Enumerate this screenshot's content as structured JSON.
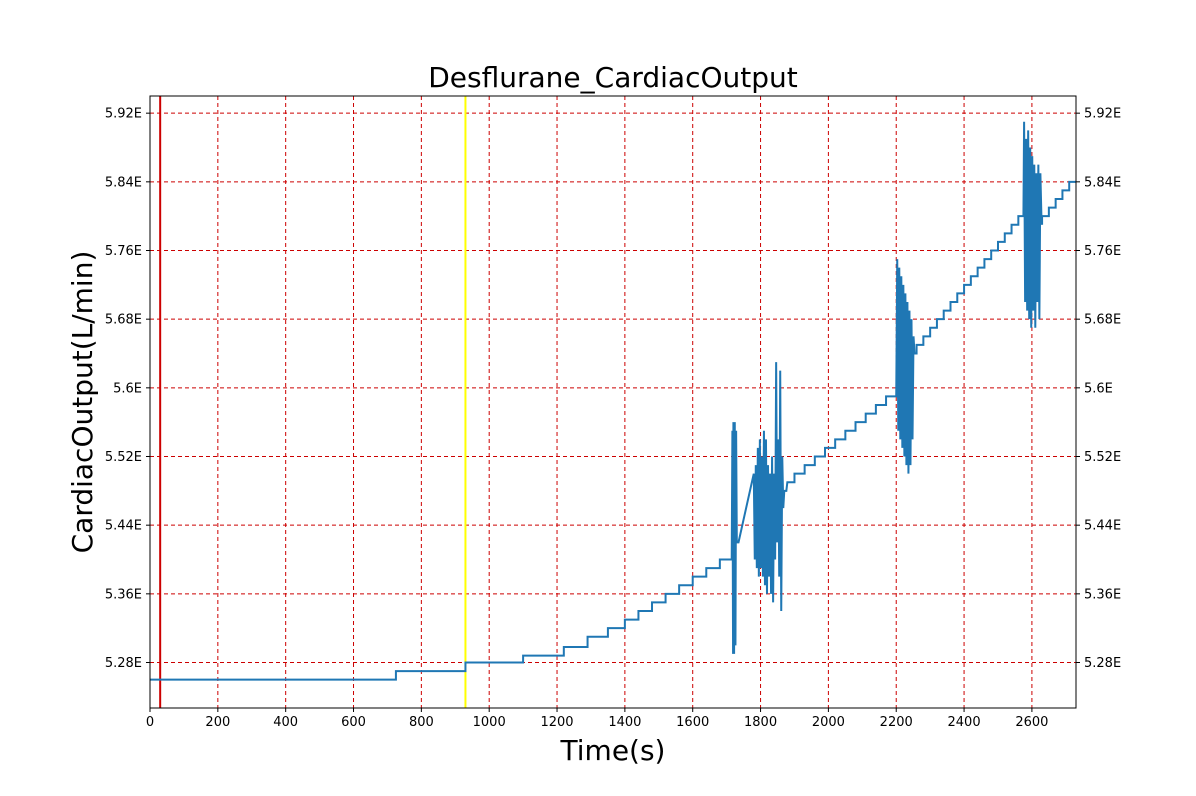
{
  "chart_data": {
    "type": "line",
    "title": "Desflurane_CardiacOutput",
    "xlabel": "Time(s)",
    "ylabel": "CardiacOutput(L/min)",
    "xlim": [
      0,
      2730
    ],
    "ylim": [
      5.227,
      5.94
    ],
    "x_ticks": [
      0,
      200,
      400,
      600,
      800,
      1000,
      1200,
      1400,
      1600,
      1800,
      2000,
      2200,
      2400,
      2600
    ],
    "x_tick_labels": [
      "0",
      "200",
      "400",
      "600",
      "800",
      "1000",
      "1200",
      "1400",
      "1600",
      "1800",
      "2000",
      "2200",
      "2400",
      "2600"
    ],
    "y_ticks": [
      5.28,
      5.36,
      5.44,
      5.52,
      5.6,
      5.68,
      5.76,
      5.84,
      5.92
    ],
    "y_tick_labels": [
      "5.28E",
      "5.36E",
      "5.44E",
      "5.52E",
      "5.6E",
      "5.68E",
      "5.76E",
      "5.84E",
      "5.92E"
    ],
    "grid": true,
    "grid_color": "#cc0000",
    "series_color": "#1f77b4",
    "vertical_lines": [
      {
        "x": 30,
        "color": "#cc0000"
      },
      {
        "x": 930,
        "color": "#ffff00"
      }
    ],
    "series": [
      {
        "x": [
          0,
          725,
          725,
          930,
          930,
          1100,
          1100,
          1220,
          1220,
          1290,
          1290,
          1350,
          1350,
          1400,
          1400,
          1440,
          1440,
          1480,
          1480,
          1520,
          1520,
          1560,
          1560,
          1600,
          1600,
          1640,
          1640,
          1680,
          1680,
          1715,
          1717,
          1719,
          1720,
          1722,
          1724,
          1726,
          1728,
          1730,
          1735,
          1780,
          1783,
          1786,
          1789,
          1792,
          1795,
          1798,
          1801,
          1804,
          1807,
          1810,
          1813,
          1816,
          1819,
          1822,
          1825,
          1828,
          1831,
          1834,
          1837,
          1840,
          1843,
          1846,
          1849,
          1852,
          1855,
          1858,
          1861,
          1864,
          1867,
          1870,
          1873,
          1876,
          1879,
          1882,
          1900,
          1900,
          1930,
          1930,
          1960,
          1960,
          1990,
          1990,
          2020,
          2020,
          2050,
          2050,
          2080,
          2080,
          2110,
          2110,
          2140,
          2140,
          2170,
          2170,
          2200,
          2203,
          2206,
          2209,
          2212,
          2215,
          2218,
          2221,
          2224,
          2227,
          2230,
          2233,
          2236,
          2239,
          2242,
          2245,
          2248,
          2251,
          2254,
          2260,
          2260,
          2280,
          2280,
          2300,
          2300,
          2320,
          2320,
          2340,
          2340,
          2360,
          2360,
          2380,
          2380,
          2400,
          2400,
          2420,
          2420,
          2440,
          2440,
          2460,
          2460,
          2480,
          2480,
          2500,
          2500,
          2520,
          2520,
          2540,
          2540,
          2560,
          2560,
          2575,
          2577,
          2580,
          2583,
          2586,
          2589,
          2592,
          2595,
          2598,
          2601,
          2604,
          2607,
          2610,
          2613,
          2616,
          2619,
          2622,
          2625,
          2628,
          2630,
          2630,
          2650,
          2650,
          2670,
          2670,
          2690,
          2690,
          2710,
          2710,
          2730
        ],
        "values": [
          5.26,
          5.26,
          5.27,
          5.27,
          5.28,
          5.28,
          5.288,
          5.288,
          5.298,
          5.298,
          5.31,
          5.31,
          5.32,
          5.32,
          5.33,
          5.33,
          5.34,
          5.34,
          5.35,
          5.35,
          5.36,
          5.36,
          5.37,
          5.37,
          5.38,
          5.38,
          5.39,
          5.39,
          5.4,
          5.4,
          5.55,
          5.29,
          5.56,
          5.29,
          5.56,
          5.3,
          5.55,
          5.42,
          5.42,
          5.5,
          5.4,
          5.51,
          5.39,
          5.53,
          5.38,
          5.54,
          5.39,
          5.52,
          5.38,
          5.55,
          5.37,
          5.54,
          5.36,
          5.51,
          5.38,
          5.5,
          5.36,
          5.52,
          5.35,
          5.5,
          5.4,
          5.63,
          5.42,
          5.54,
          5.38,
          5.62,
          5.34,
          5.52,
          5.46,
          5.48,
          5.48,
          5.48,
          5.49,
          5.49,
          5.49,
          5.5,
          5.5,
          5.51,
          5.51,
          5.52,
          5.52,
          5.53,
          5.53,
          5.54,
          5.54,
          5.55,
          5.55,
          5.56,
          5.56,
          5.57,
          5.57,
          5.58,
          5.58,
          5.59,
          5.59,
          5.75,
          5.55,
          5.74,
          5.54,
          5.73,
          5.53,
          5.72,
          5.52,
          5.71,
          5.51,
          5.7,
          5.5,
          5.69,
          5.51,
          5.68,
          5.54,
          5.66,
          5.64,
          5.64,
          5.65,
          5.65,
          5.66,
          5.66,
          5.67,
          5.67,
          5.68,
          5.68,
          5.69,
          5.69,
          5.7,
          5.7,
          5.71,
          5.71,
          5.72,
          5.72,
          5.73,
          5.73,
          5.74,
          5.74,
          5.75,
          5.75,
          5.76,
          5.76,
          5.77,
          5.77,
          5.78,
          5.78,
          5.79,
          5.79,
          5.8,
          5.8,
          5.91,
          5.7,
          5.89,
          5.69,
          5.9,
          5.68,
          5.88,
          5.67,
          5.87,
          5.69,
          5.86,
          5.67,
          5.85,
          5.7,
          5.86,
          5.68,
          5.85,
          5.8,
          5.79,
          5.8,
          5.8,
          5.81,
          5.81,
          5.82,
          5.82,
          5.83,
          5.83,
          5.84,
          5.84
        ]
      }
    ]
  }
}
